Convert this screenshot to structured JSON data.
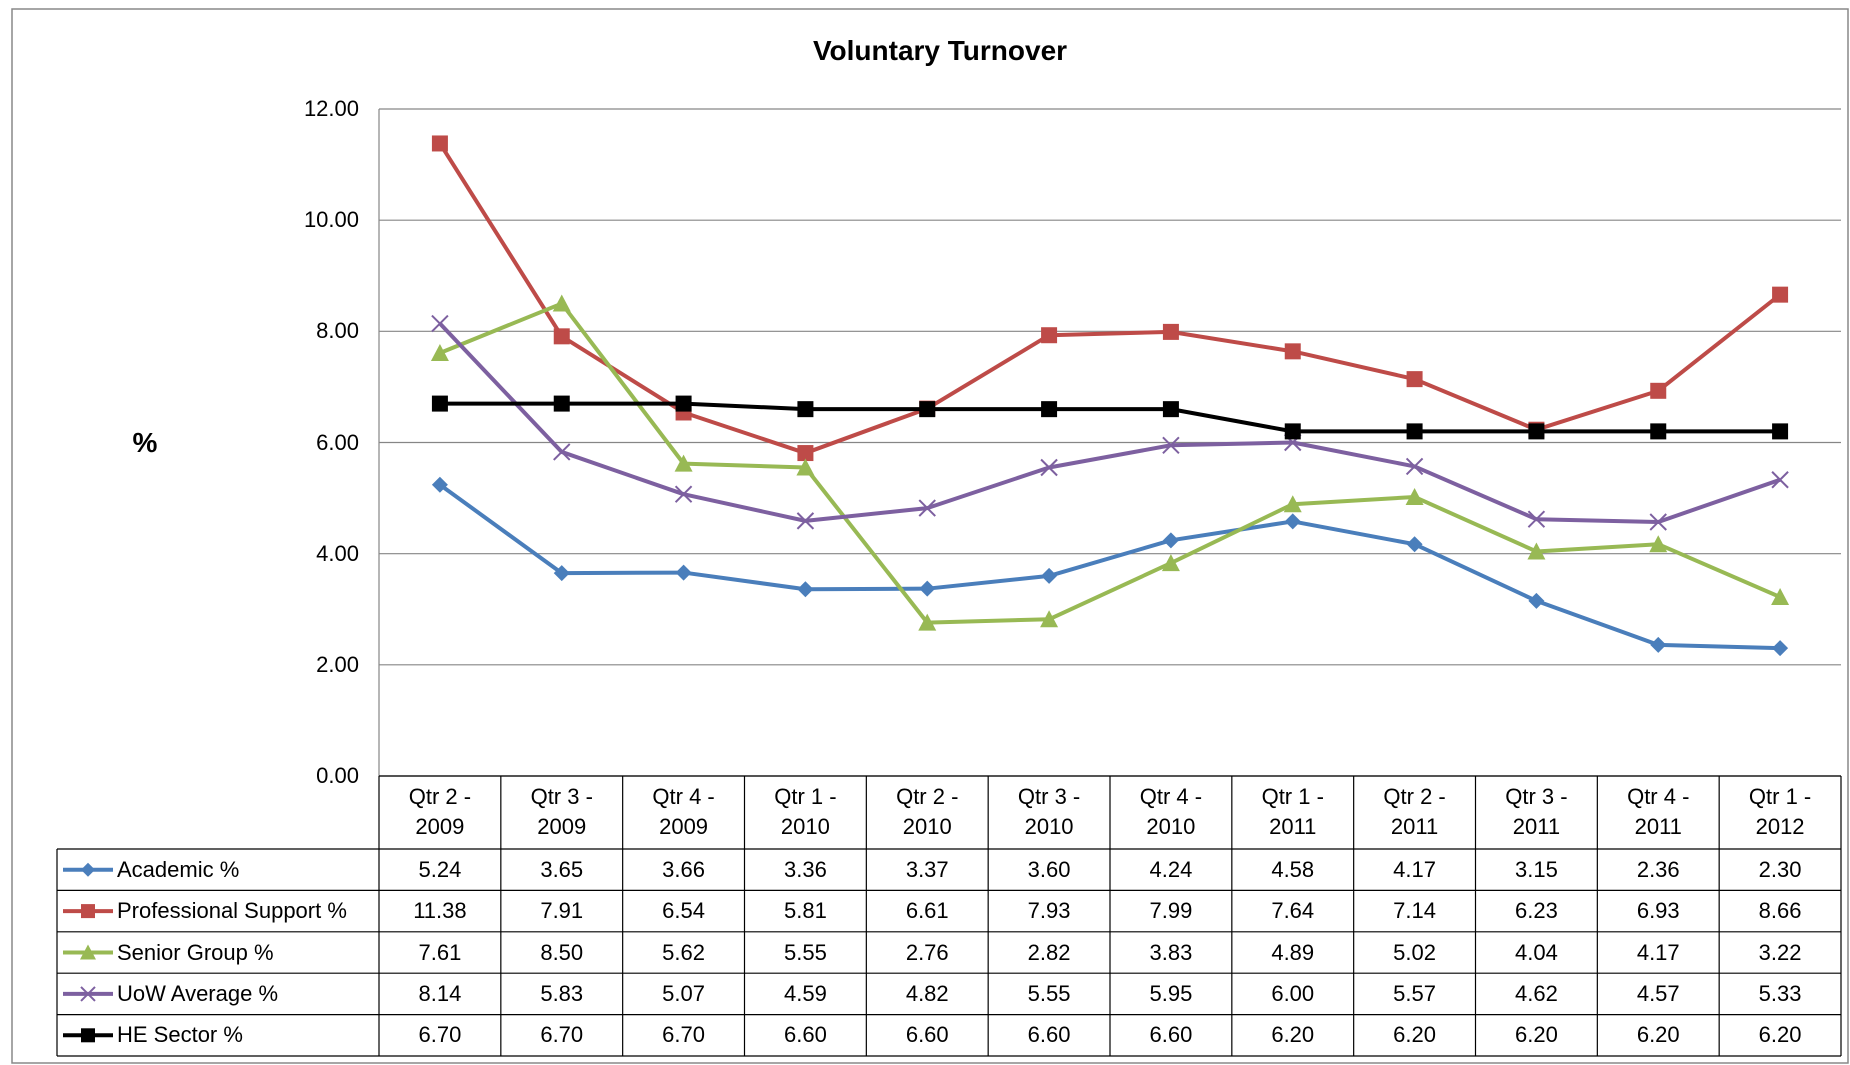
{
  "chart_data": {
    "type": "line",
    "title": "Voluntary Turnover",
    "y_label": "%",
    "categories": [
      "Qtr 2 - 2009",
      "Qtr 3 - 2009",
      "Qtr 4 - 2009",
      "Qtr 1 - 2010",
      "Qtr 2 - 2010",
      "Qtr 3 - 2010",
      "Qtr 4 - 2010",
      "Qtr 1 - 2011",
      "Qtr 2 - 2011",
      "Qtr 3 - 2011",
      "Qtr 4 - 2011",
      "Qtr 1 - 2012"
    ],
    "ylim": [
      0,
      12
    ],
    "yticks": [
      {
        "value": 0,
        "label": "0.00"
      },
      {
        "value": 2,
        "label": "2.00"
      },
      {
        "value": 4,
        "label": "4.00"
      },
      {
        "value": 6,
        "label": "6.00"
      },
      {
        "value": 8,
        "label": "8.00"
      },
      {
        "value": 10,
        "label": "10.00"
      },
      {
        "value": 12,
        "label": "12.00"
      }
    ],
    "grid": true,
    "data_table": true,
    "series": [
      {
        "name": "Academic %",
        "color": "#4a7ebb",
        "marker": "diamond",
        "values": [
          5.24,
          3.65,
          3.66,
          3.36,
          3.37,
          3.6,
          4.24,
          4.58,
          4.17,
          3.15,
          2.36,
          2.3
        ],
        "value_labels": [
          "5.24",
          "3.65",
          "3.66",
          "3.36",
          "3.37",
          "3.60",
          "4.24",
          "4.58",
          "4.17",
          "3.15",
          "2.36",
          "2.30"
        ]
      },
      {
        "name": "Professional Support %",
        "color": "#be4b48",
        "marker": "square",
        "values": [
          11.38,
          7.91,
          6.54,
          5.81,
          6.61,
          7.93,
          7.99,
          7.64,
          7.14,
          6.23,
          6.93,
          8.66
        ],
        "value_labels": [
          "11.38",
          "7.91",
          "6.54",
          "5.81",
          "6.61",
          "7.93",
          "7.99",
          "7.64",
          "7.14",
          "6.23",
          "6.93",
          "8.66"
        ]
      },
      {
        "name": "Senior Group %",
        "color": "#98b954",
        "marker": "triangle",
        "values": [
          7.61,
          8.5,
          5.62,
          5.55,
          2.76,
          2.82,
          3.83,
          4.89,
          5.02,
          4.04,
          4.17,
          3.22
        ],
        "value_labels": [
          "7.61",
          "8.50",
          "5.62",
          "5.55",
          "2.76",
          "2.82",
          "3.83",
          "4.89",
          "5.02",
          "4.04",
          "4.17",
          "3.22"
        ]
      },
      {
        "name": "UoW Average %",
        "color": "#7d60a0",
        "marker": "x",
        "values": [
          8.14,
          5.83,
          5.07,
          4.59,
          4.82,
          5.55,
          5.95,
          6.0,
          5.57,
          4.62,
          4.57,
          5.33
        ],
        "value_labels": [
          "8.14",
          "5.83",
          "5.07",
          "4.59",
          "4.82",
          "5.55",
          "5.95",
          "6.00",
          "5.57",
          "4.62",
          "4.57",
          "5.33"
        ]
      },
      {
        "name": "HE Sector %",
        "color": "#000000",
        "marker": "square",
        "values": [
          6.7,
          6.7,
          6.7,
          6.6,
          6.6,
          6.6,
          6.6,
          6.2,
          6.2,
          6.2,
          6.2,
          6.2
        ],
        "value_labels": [
          "6.70",
          "6.70",
          "6.70",
          "6.60",
          "6.60",
          "6.60",
          "6.60",
          "6.20",
          "6.20",
          "6.20",
          "6.20",
          "6.20"
        ]
      }
    ]
  }
}
